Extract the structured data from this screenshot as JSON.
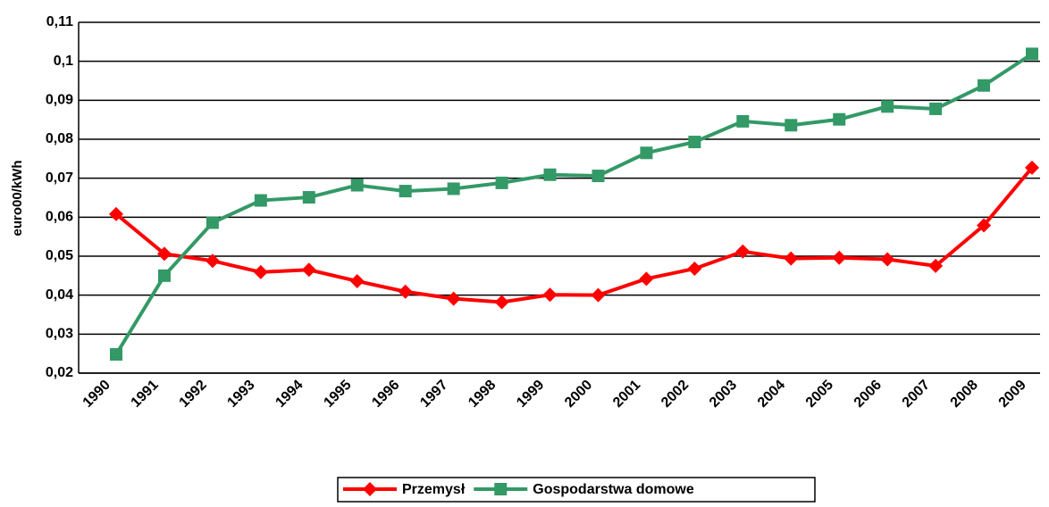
{
  "chart_data": {
    "type": "line",
    "y_label": "euro00/kWh",
    "categories": [
      "1990",
      "1991",
      "1992",
      "1993",
      "1994",
      "1995",
      "1996",
      "1997",
      "1998",
      "1999",
      "2000",
      "2001",
      "2002",
      "2003",
      "2004",
      "2005",
      "2006",
      "2007",
      "2008",
      "2009"
    ],
    "series": [
      {
        "name": "Przemysł",
        "color": "#ff0000",
        "marker": "diamond",
        "values": [
          0.0608,
          0.0506,
          0.0488,
          0.0459,
          0.0465,
          0.0436,
          0.0409,
          0.0391,
          0.0382,
          0.0401,
          0.04,
          0.0442,
          0.0468,
          0.0512,
          0.0494,
          0.0496,
          0.0492,
          0.0475,
          0.0579,
          0.0727
        ]
      },
      {
        "name": "Gospodarstwa domowe",
        "color": "#339966",
        "marker": "square",
        "values": [
          0.0248,
          0.045,
          0.0586,
          0.0643,
          0.0651,
          0.0682,
          0.0667,
          0.0673,
          0.0688,
          0.0709,
          0.0706,
          0.0765,
          0.0793,
          0.0846,
          0.0836,
          0.0851,
          0.0884,
          0.0878,
          0.0938,
          0.1019
        ]
      }
    ],
    "ylim": [
      0.02,
      0.11
    ],
    "yticks": [
      {
        "value": 0.02,
        "label": "0,02"
      },
      {
        "value": 0.03,
        "label": "0,03"
      },
      {
        "value": 0.04,
        "label": "0,04"
      },
      {
        "value": 0.05,
        "label": "0,05"
      },
      {
        "value": 0.06,
        "label": "0,06"
      },
      {
        "value": 0.07,
        "label": "0,07"
      },
      {
        "value": 0.08,
        "label": "0,08"
      },
      {
        "value": 0.09,
        "label": "0,09"
      },
      {
        "value": 0.1,
        "label": "0,1"
      },
      {
        "value": 0.11,
        "label": "0,11"
      }
    ],
    "grid": true,
    "legend": "bottom"
  }
}
